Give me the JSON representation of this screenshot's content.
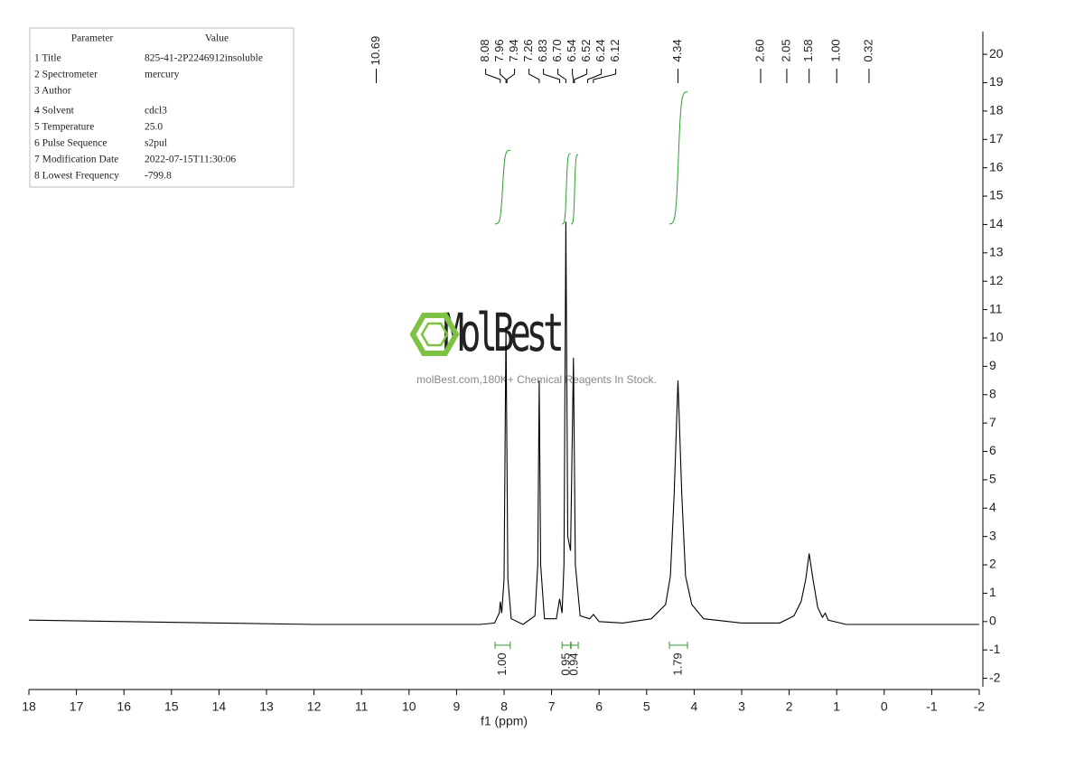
{
  "parameters": {
    "header": [
      "Parameter",
      "Value"
    ],
    "rows": [
      [
        "1 Title",
        "825-41-2P2246912insoluble"
      ],
      [
        "2 Spectrometer",
        "mercury"
      ],
      [
        "3 Author",
        ""
      ],
      [
        "4 Solvent",
        "cdcl3"
      ],
      [
        "5 Temperature",
        "25.0"
      ],
      [
        "6 Pulse Sequence",
        "s2pul"
      ],
      [
        "7 Modification Date",
        "2022-07-15T11:30:06"
      ],
      [
        "8 Lowest Frequency",
        "-799.8"
      ]
    ]
  },
  "watermark": {
    "brand": "MolBest",
    "tagline": "molBest.com,180K+ Chemical Reagents In Stock."
  },
  "chart_data": {
    "type": "line",
    "x_label": "f1 (ppm)",
    "xlim": [
      18,
      -2
    ],
    "ylim": [
      -2.3,
      20.8
    ],
    "xticks": [
      18,
      17,
      16,
      15,
      14,
      13,
      12,
      11,
      10,
      9,
      8,
      7,
      6,
      5,
      4,
      3,
      2,
      1,
      0,
      -1,
      -2
    ],
    "yticks": [
      20,
      19,
      18,
      17,
      16,
      15,
      14,
      13,
      12,
      11,
      10,
      9,
      8,
      7,
      6,
      5,
      4,
      3,
      2,
      1,
      0,
      -1,
      -2
    ],
    "x": [
      18,
      16,
      14,
      12,
      10,
      8.5,
      8.2,
      8.1,
      8.08,
      8.05,
      8.0,
      7.96,
      7.92,
      7.85,
      7.6,
      7.35,
      7.29,
      7.26,
      7.23,
      7.15,
      6.9,
      6.83,
      6.78,
      6.74,
      6.7,
      6.66,
      6.6,
      6.54,
      6.5,
      6.4,
      6.2,
      6.12,
      6.0,
      5.5,
      4.9,
      4.6,
      4.5,
      4.42,
      4.34,
      4.26,
      4.18,
      4.05,
      3.8,
      3.0,
      2.2,
      1.9,
      1.75,
      1.65,
      1.58,
      1.5,
      1.4,
      1.3,
      1.24,
      1.18,
      0.8,
      0,
      -1,
      -2
    ],
    "series": [
      {
        "color": "#000000",
        "values": [
          0.05,
          0.0,
          -0.05,
          -0.1,
          -0.1,
          -0.1,
          -0.05,
          0.3,
          0.7,
          0.3,
          1.5,
          10.4,
          1.5,
          0.1,
          -0.1,
          0.2,
          2,
          8.5,
          2,
          0.1,
          0.1,
          0.8,
          0.3,
          2,
          14.1,
          3,
          2.5,
          9.3,
          2,
          0.2,
          0.1,
          0.25,
          0,
          -0.05,
          0.1,
          0.6,
          1.6,
          4.5,
          8.5,
          4.5,
          1.6,
          0.6,
          0.1,
          -0.05,
          -0.05,
          0.2,
          0.7,
          1.5,
          2.4,
          1.5,
          0.5,
          0.15,
          0.3,
          0.05,
          -0.1,
          -0.1,
          -0.1,
          -0.1
        ]
      }
    ],
    "peak_labels": [
      {
        "value": 10.69,
        "label": "10.69"
      },
      {
        "value": 8.08,
        "label": "8.08"
      },
      {
        "value": 7.96,
        "label": "7.96"
      },
      {
        "value": 7.94,
        "label": "7.94"
      },
      {
        "value": 7.26,
        "label": "7.26"
      },
      {
        "value": 6.83,
        "label": "6.83"
      },
      {
        "value": 6.7,
        "label": "6.70"
      },
      {
        "value": 6.54,
        "label": "6.54"
      },
      {
        "value": 6.52,
        "label": "6.52"
      },
      {
        "value": 6.24,
        "label": "6.24"
      },
      {
        "value": 6.12,
        "label": "6.12"
      },
      {
        "value": 4.34,
        "label": "4.34"
      },
      {
        "value": 2.6,
        "label": "2.60"
      },
      {
        "value": 2.05,
        "label": "2.05"
      },
      {
        "value": 1.58,
        "label": "1.58"
      },
      {
        "value": 1.0,
        "label": "1.00"
      },
      {
        "value": 0.32,
        "label": "0.32"
      }
    ],
    "integral_color": "#2e9e2e",
    "integrals": [
      {
        "from": 8.19,
        "to": 7.87,
        "value": 1,
        "label": "1.00"
      },
      {
        "from": 6.78,
        "to": 6.6,
        "value": 0.95,
        "label": "0.95"
      },
      {
        "from": 6.59,
        "to": 6.44,
        "value": 0.94,
        "label": "0.94"
      },
      {
        "from": 4.52,
        "to": 4.14,
        "value": 1.79,
        "label": "1.79"
      }
    ]
  }
}
